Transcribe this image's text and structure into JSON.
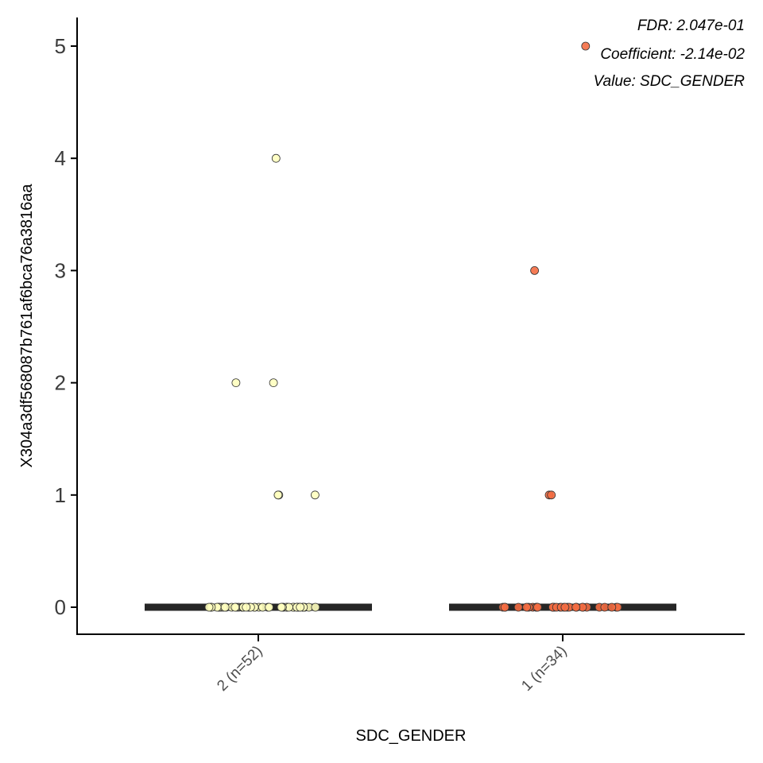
{
  "chart_data": {
    "type": "scatter",
    "subtype": "jittered dot plot with median bars",
    "xlabel": "SDC_GENDER",
    "ylabel": "X304a3df568087b761af6bca76a3816aa",
    "ylim": [
      -0.25,
      5.25
    ],
    "yticks": [
      0,
      1,
      2,
      3,
      4,
      5
    ],
    "grid": false,
    "legend": "none",
    "categories": [
      "2 (n=52)",
      "1 (n=34)"
    ],
    "annotations": [
      "FDR: 2.047e-01",
      "Coefficient: -2.14e-02",
      "Value: SDC_GENDER"
    ],
    "series": [
      {
        "category": "2 (n=52)",
        "median": 0,
        "color": "#FFFFBF",
        "values": [
          4,
          2,
          2,
          1,
          1,
          1,
          0,
          0,
          0,
          0,
          0,
          0,
          0,
          0,
          0,
          0,
          0,
          0,
          0,
          0,
          0,
          0,
          0,
          0,
          0,
          0,
          0,
          0,
          0,
          0,
          0,
          0,
          0,
          0,
          0,
          0,
          0,
          0,
          0,
          0,
          0,
          0,
          0,
          0,
          0,
          0,
          0,
          0,
          0,
          0,
          0,
          0
        ]
      },
      {
        "category": "1 (n=34)",
        "median": 0,
        "color": "#F46D43",
        "values": [
          5,
          3,
          1,
          1,
          0,
          0,
          0,
          0,
          0,
          0,
          0,
          0,
          0,
          0,
          0,
          0,
          0,
          0,
          0,
          0,
          0,
          0,
          0,
          0,
          0,
          0,
          0,
          0,
          0,
          0,
          0,
          0,
          0,
          0
        ]
      }
    ],
    "colors": {
      "axis": "#000000",
      "median_bar": "#262626",
      "point_stroke": "#333333"
    }
  }
}
